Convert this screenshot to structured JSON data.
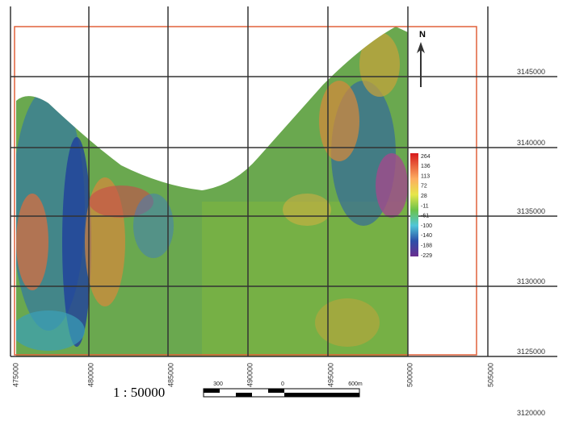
{
  "map": {
    "x_labels": [
      "475000",
      "480000",
      "485000",
      "490000",
      "495000",
      "500000",
      "505000"
    ],
    "y_labels": [
      "3145000",
      "3140000",
      "3135000",
      "3130000",
      "3125000",
      "3120000"
    ],
    "legend": [
      "264",
      "136",
      "113",
      "72",
      "28",
      "-11",
      "-61",
      "-100",
      "-140",
      "-188",
      "-229"
    ],
    "scale": "1 : 50000",
    "scale_bar_labels": [
      "300",
      "0",
      "600m"
    ],
    "north": "N"
  }
}
